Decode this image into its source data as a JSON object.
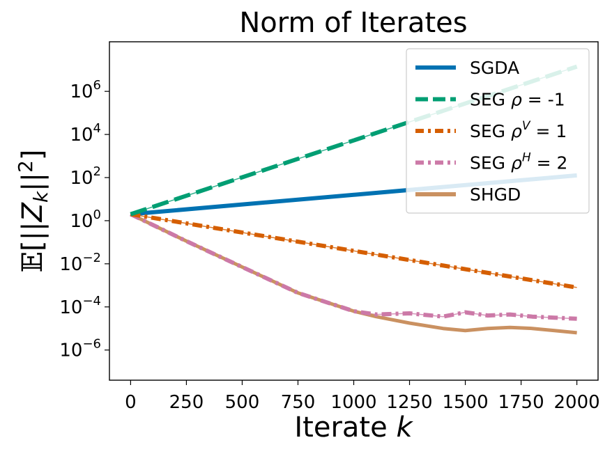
{
  "chart_data": {
    "type": "line",
    "title": "Norm of Iterates",
    "xlabel": "Iterate k",
    "ylabel": "E[||Z_k||^2]",
    "x_scale": "linear",
    "y_scale": "log",
    "xlim": [
      -95,
      2095
    ],
    "ylim_log10": [
      -7.4,
      8.3
    ],
    "x_ticks": [
      0,
      250,
      500,
      750,
      1000,
      1250,
      1500,
      1750,
      2000
    ],
    "x_tick_labels": [
      "0",
      "250",
      "500",
      "750",
      "1000",
      "1250",
      "1500",
      "1750",
      "2000"
    ],
    "y_ticks_log10": [
      -6,
      -4,
      -2,
      0,
      2,
      4,
      6
    ],
    "y_tick_labels": [
      "10^-6",
      "10^-4",
      "10^-2",
      "10^0",
      "10^2",
      "10^4",
      "10^6"
    ],
    "grid": false,
    "legend_position": "top-right",
    "series": [
      {
        "name": "SGDA",
        "color": "#0072b2",
        "style": "solid",
        "x": [
          0,
          2000
        ],
        "y_log10": [
          0.3,
          2.1
        ]
      },
      {
        "name": "SEG ρ = -1",
        "color": "#009e73",
        "style": "dashed",
        "x": [
          0,
          2000
        ],
        "y_log10": [
          0.3,
          7.15
        ]
      },
      {
        "name": "SEG ρ^V = 1",
        "color": "#d55e00",
        "style": "dashdot",
        "x": [
          0,
          2000
        ],
        "y_log10": [
          0.3,
          -3.1
        ]
      },
      {
        "name": "SEG ρ^H = 2",
        "color": "#cc79a7",
        "style": "dashdot",
        "x": [
          0,
          250,
          500,
          750,
          1000,
          1100,
          1250,
          1400,
          1500,
          1600,
          1700,
          1800,
          1900,
          2000
        ],
        "y_log10": [
          0.3,
          -0.95,
          -2.15,
          -3.35,
          -4.2,
          -4.35,
          -4.3,
          -4.45,
          -4.25,
          -4.4,
          -4.35,
          -4.45,
          -4.5,
          -4.55
        ]
      },
      {
        "name": "SHGD",
        "color": "#ca9161",
        "style": "solid",
        "x": [
          0,
          250,
          500,
          750,
          1000,
          1100,
          1250,
          1400,
          1500,
          1600,
          1700,
          1800,
          1900,
          2000
        ],
        "y_log10": [
          0.3,
          -0.95,
          -2.15,
          -3.35,
          -4.2,
          -4.45,
          -4.75,
          -5.0,
          -5.1,
          -5.0,
          -4.95,
          -5.0,
          -5.1,
          -5.2
        ]
      }
    ]
  }
}
